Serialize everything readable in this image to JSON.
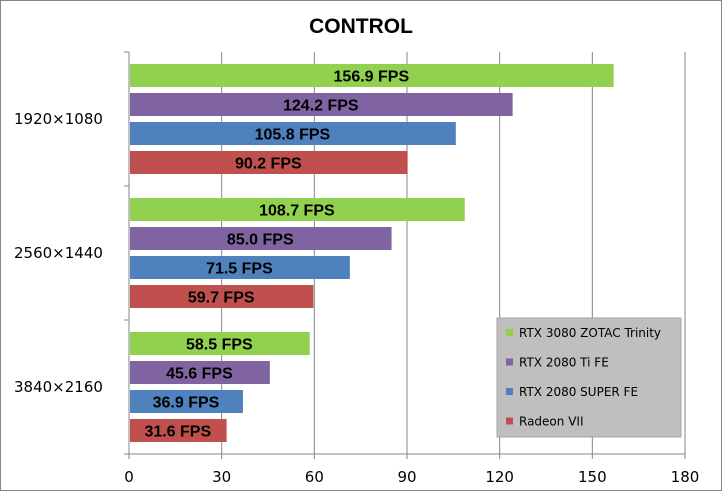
{
  "chart_data": {
    "type": "bar",
    "orientation": "horizontal",
    "title": "CONTROL",
    "xlabel": "",
    "ylabel": "",
    "categories": [
      "1920×1080",
      "2560×1440",
      "3840×2160"
    ],
    "xlim": [
      0,
      180
    ],
    "xticks": [
      0,
      30,
      60,
      90,
      120,
      150,
      180
    ],
    "grid": true,
    "legend_position": "bottom-right",
    "value_suffix": " FPS",
    "series": [
      {
        "name": "RTX 3080 ZOTAC Trinity",
        "color": "#92d050",
        "values": [
          156.9,
          108.7,
          58.5
        ],
        "labels": [
          "156.9 FPS",
          "108.7 FPS",
          "58.5 FPS"
        ]
      },
      {
        "name": "RTX 2080 Ti FE",
        "color": "#8064a2",
        "values": [
          124.2,
          85.0,
          45.6
        ],
        "labels": [
          "124.2 FPS",
          "85.0 FPS",
          "45.6 FPS"
        ]
      },
      {
        "name": "RTX 2080 SUPER FE",
        "color": "#4f81bd",
        "values": [
          105.8,
          71.5,
          36.9
        ],
        "labels": [
          "105.8 FPS",
          "71.5 FPS",
          "36.9 FPS"
        ]
      },
      {
        "name": "Radeon VII",
        "color": "#c0504d",
        "values": [
          90.2,
          59.7,
          31.6
        ],
        "labels": [
          "90.2 FPS",
          "59.7 FPS",
          "31.6 FPS"
        ]
      }
    ]
  }
}
